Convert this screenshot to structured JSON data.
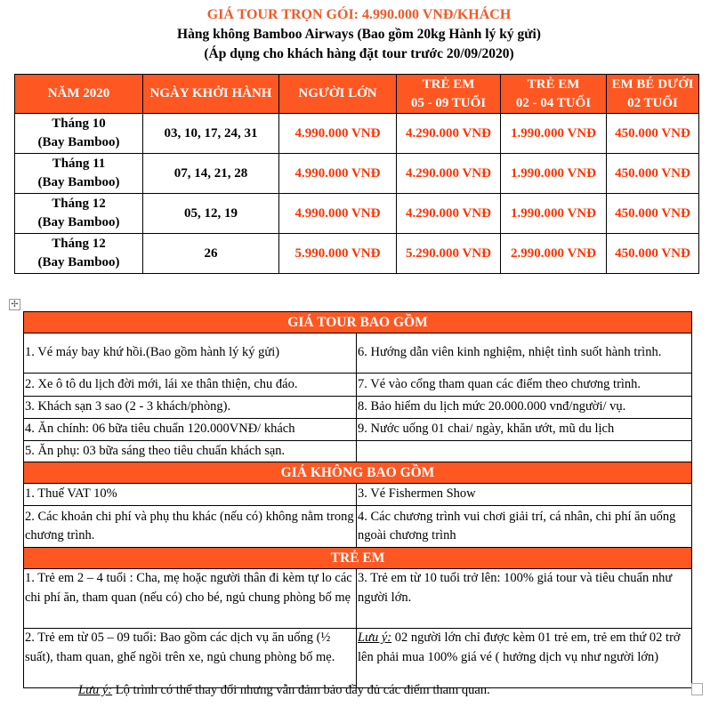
{
  "header": {
    "title": "GIÁ TOUR TRỌN GÓI: 4.990.000 VNĐ/KHÁCH",
    "subtitle": "Hàng không Bamboo Airways (Bao gồm 20kg Hành lý ký gửi)",
    "note": "(Áp dụng cho khách hàng đặt tour trước 20/09/2020)",
    "title_color": "#f05a28"
  },
  "price_table": {
    "headers": [
      "NĂM 2020",
      "NGÀY KHỞI HÀNH",
      "NGƯỜI LỚN",
      "TRẺ EM\n05 - 09 TUỔI",
      "TRẺ EM\n02 - 04 TUỔI",
      "EM BÉ DƯỚI\n02 TUỔI"
    ],
    "rows": [
      {
        "month": "Tháng 10",
        "airline": "(Bay Bamboo)",
        "dates": "03, 10, 17, 24, 31",
        "adult": "4.990.000 VNĐ",
        "child_5_9": "4.290.000 VNĐ",
        "child_2_4": "1.990.000 VNĐ",
        "infant": "450.000 VNĐ"
      },
      {
        "month": "Tháng 11",
        "airline": "(Bay Bamboo)",
        "dates": "07, 14, 21, 28",
        "adult": "4.990.000 VNĐ",
        "child_5_9": "4.290.000 VNĐ",
        "child_2_4": "1.990.000 VNĐ",
        "infant": "450.000 VNĐ"
      },
      {
        "month": "Tháng 12",
        "airline": "(Bay Bamboo)",
        "dates": "05, 12, 19",
        "adult": "4.990.000 VNĐ",
        "child_5_9": "4.290.000 VNĐ",
        "child_2_4": "1.990.000 VNĐ",
        "infant": "450.000 VNĐ"
      },
      {
        "month": "Tháng 12",
        "airline": "(Bay Bamboo)",
        "dates": "26",
        "adult": "5.990.000 VNĐ",
        "child_5_9": "5.290.000 VNĐ",
        "child_2_4": "2.990.000 VNĐ",
        "infant": "450.000 VNĐ"
      }
    ]
  },
  "included": {
    "title": "GIÁ TOUR BAO GỒM",
    "rows": [
      [
        "1. Vé máy bay khứ hồi.(Bao gồm hành lý ký gửi)",
        "6. Hướng dẫn viên kinh nghiệm, nhiệt tình suốt hành trình."
      ],
      [
        "2. Xe ô tô du lịch đời mới, lái xe thân thiện, chu đáo.",
        "7. Vé vào cổng tham quan các điểm theo chương trình."
      ],
      [
        "3. Khách sạn 3 sao (2 - 3 khách/phòng).",
        "8. Bảo hiểm du lịch mức 20.000.000 vnđ/người/ vụ."
      ],
      [
        "4. Ăn chính: 06 bữa tiêu chuẩn 120.000VNĐ/ khách",
        "9. Nước uống 01 chai/ ngày, khăn ướt, mũ du lịch"
      ],
      [
        "5. Ăn phụ: 03 bữa sáng theo tiêu chuẩn khách sạn.",
        ""
      ]
    ]
  },
  "excluded": {
    "title": "GIÁ KHÔNG BAO GỒM",
    "rows": [
      [
        "1. Thuế VAT 10%",
        "3. Vé Fishermen Show"
      ],
      [
        "2. Các khoản chi phí và phụ thu khác (nếu có) không nằm trong chương trình.",
        "4. Các chương trình vui chơi giải trí, cá nhân, chi phí ăn uống ngoài chương trình"
      ]
    ]
  },
  "children": {
    "title": "TRẺ EM",
    "rows": [
      [
        "1. Trẻ em 2 – 4 tuổi : Cha, mẹ hoặc người thân đi kèm tự  lo các chi phí ăn, tham quan (nếu có) cho bé, ngủ chung phòng bố mẹ",
        "3. Trẻ em từ 10 tuổi trở lên: 100% giá tour và tiêu chuẩn như người lớn."
      ],
      [
        "2. Trẻ em từ 05 – 09 tuổi: Bao gồm các dịch vụ ăn uống (½ suất), tham quan, ghế ngồi trên xe, ngủ chung phòng bố mẹ.",
        ""
      ]
    ],
    "note_label": "Lưu ý:",
    "note_text": " 02 người lớn chỉ được kèm 01 trẻ em, trẻ em thứ 02 trở lên phải mua 100% giá vé ( hưởng dịch vụ như người lớn)"
  },
  "footer": {
    "label": "Lưu ý:",
    "text": " Lộ trình có thể thay đổi nhưng vẫn đảm bảo đầy đủ các điểm tham quan."
  },
  "colors": {
    "header_bg": "#ff5722",
    "price_text": "#ff3300"
  }
}
